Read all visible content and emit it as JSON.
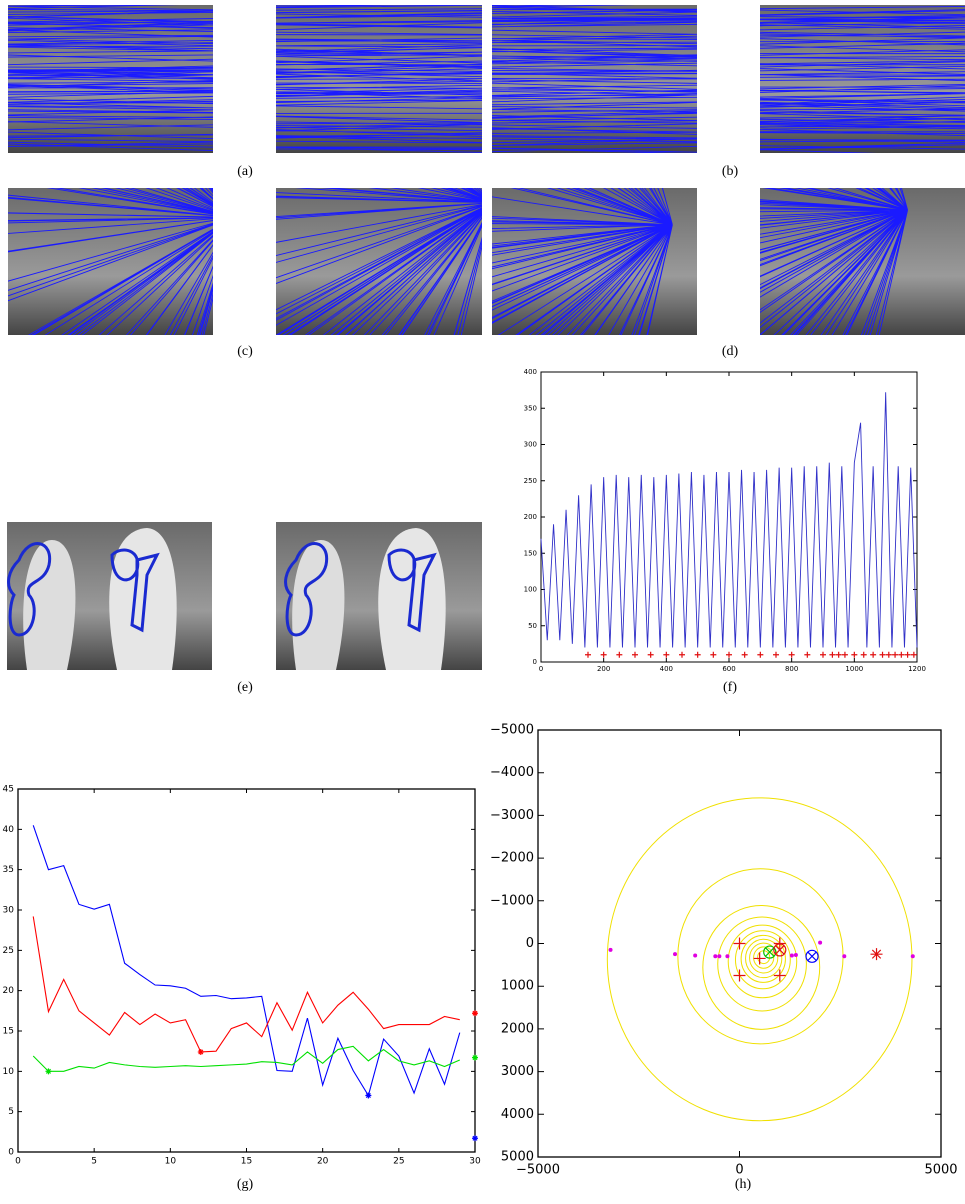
{
  "figure": {
    "labels": [
      "(a)",
      "(b)",
      "(c)",
      "(d)",
      "(e)",
      "(f)",
      "(g)",
      "(h)"
    ]
  },
  "chart_data": [
    {
      "type": "line",
      "x": [
        0,
        20,
        40,
        60,
        80,
        100,
        120,
        140,
        160,
        180,
        200,
        220,
        240,
        260,
        280,
        300,
        320,
        340,
        360,
        380,
        400,
        420,
        440,
        460,
        480,
        500,
        520,
        540,
        560,
        580,
        600,
        620,
        640,
        660,
        680,
        700,
        720,
        740,
        760,
        780,
        800,
        820,
        840,
        860,
        880,
        900,
        920,
        940,
        960,
        980,
        1000,
        1020,
        1040,
        1060,
        1080,
        1100,
        1120,
        1140,
        1160,
        1180,
        1200
      ],
      "xlim": [
        0,
        1200
      ],
      "ylim": [
        0,
        400
      ],
      "xticks": [
        0,
        200,
        400,
        600,
        800,
        1000,
        1200
      ],
      "yticks": [
        0,
        50,
        100,
        150,
        200,
        250,
        300,
        350,
        400
      ],
      "series": [
        {
          "color": "#3030c8",
          "values": [
            170,
            30,
            190,
            30,
            210,
            25,
            230,
            20,
            245,
            20,
            255,
            20,
            258,
            20,
            255,
            20,
            258,
            20,
            255,
            20,
            258,
            20,
            260,
            20,
            262,
            20,
            258,
            20,
            262,
            20,
            262,
            20,
            265,
            20,
            262,
            20,
            265,
            20,
            268,
            20,
            268,
            20,
            270,
            20,
            270,
            20,
            275,
            20,
            270,
            20,
            275,
            330,
            20,
            270,
            20,
            372,
            20,
            270,
            20,
            268,
            20
          ]
        },
        {
          "type": "scatter",
          "marker": "+",
          "color": "#e01010",
          "x": [
            150,
            200,
            250,
            300,
            350,
            400,
            450,
            500,
            550,
            600,
            650,
            700,
            750,
            800,
            850,
            900,
            930,
            950,
            970,
            1000,
            1030,
            1060,
            1090,
            1110,
            1130,
            1150,
            1170,
            1190
          ],
          "values": [
            10,
            10,
            10,
            10,
            10,
            10,
            10,
            10,
            10,
            10,
            10,
            10,
            10,
            10,
            10,
            10,
            10,
            10,
            10,
            10,
            10,
            10,
            10,
            10,
            10,
            10,
            10,
            10
          ]
        }
      ]
    },
    {
      "type": "line",
      "x": [
        1,
        2,
        3,
        4,
        5,
        6,
        7,
        8,
        9,
        10,
        11,
        12,
        13,
        14,
        15,
        16,
        17,
        18,
        19,
        20,
        21,
        22,
        23,
        24,
        25,
        26,
        27,
        28,
        29
      ],
      "xlim": [
        0,
        30
      ],
      "ylim": [
        0,
        45
      ],
      "xticks": [
        0,
        5,
        10,
        15,
        20,
        25,
        30
      ],
      "yticks": [
        0,
        5,
        10,
        15,
        20,
        25,
        30,
        35,
        40,
        45
      ],
      "series": [
        {
          "color": "#0000ff",
          "values": [
            40.5,
            35,
            35.5,
            30.7,
            30.1,
            30.7,
            23.4,
            22,
            20.7,
            20.6,
            20.3,
            19.3,
            19.4,
            19,
            19.1,
            19.3,
            10.1,
            10,
            16.6,
            8.3,
            14.1,
            10.1,
            7,
            14,
            11.9,
            7.3,
            12.8,
            8.4,
            14.8
          ],
          "marker": "*",
          "marker_x": [
            23,
            30
          ],
          "marker_values": [
            7,
            1.7
          ]
        },
        {
          "color": "#ff0000",
          "values": [
            29.2,
            17.4,
            21.4,
            17.5,
            16,
            14.5,
            17.3,
            15.8,
            17.1,
            16,
            16.4,
            12.4,
            12.5,
            15.3,
            16,
            14.3,
            18.5,
            15.1,
            19.8,
            16,
            18.2,
            19.8,
            17.7,
            15.3,
            15.8,
            15.8,
            15.8,
            16.8,
            16.4
          ],
          "marker": "*",
          "marker_x": [
            12,
            30
          ],
          "marker_values": [
            12.4,
            17.2
          ]
        },
        {
          "color": "#00e000",
          "values": [
            11.9,
            10,
            10,
            10.6,
            10.4,
            11.1,
            10.8,
            10.6,
            10.5,
            10.6,
            10.7,
            10.6,
            10.7,
            10.8,
            10.9,
            11.2,
            11.1,
            10.8,
            12.4,
            11,
            12.7,
            13.1,
            11.3,
            12.7,
            11.3,
            10.8,
            11.3,
            10.6,
            11.4
          ],
          "marker": "*",
          "marker_x": [
            2,
            30
          ],
          "marker_values": [
            10,
            11.7
          ]
        }
      ]
    },
    {
      "type": "contour",
      "xlim": [
        -5000,
        5000
      ],
      "ylim": [
        -5000,
        5000
      ],
      "y_reversed": true,
      "xticks": [
        {
          "value": -5000,
          "label": "−5000"
        },
        0,
        5000
      ],
      "yticks": [
        {
          "value": -5000,
          "label": "−5000"
        },
        {
          "value": -4000,
          "label": "−4000"
        },
        {
          "value": -3000,
          "label": "−3000"
        },
        {
          "value": -2000,
          "label": "−2000"
        },
        {
          "value": -1000,
          "label": "−1000"
        },
        0,
        1000,
        2000,
        3000,
        4000,
        5000
      ],
      "contour_color": "#f0e000",
      "contours": [
        {
          "cx": 600,
          "cy": 320,
          "r": 150
        },
        {
          "cx": 600,
          "cy": 330,
          "r": 250
        },
        {
          "cx": 600,
          "cy": 340,
          "r": 350
        },
        {
          "cx": 600,
          "cy": 350,
          "r": 450
        },
        {
          "cx": 590,
          "cy": 360,
          "r": 550
        },
        {
          "cx": 580,
          "cy": 380,
          "r": 680
        },
        {
          "cx": 570,
          "cy": 420,
          "r": 850
        },
        {
          "cx": 560,
          "cy": 480,
          "r": 1100
        },
        {
          "cx": 540,
          "cy": 560,
          "r": 1450
        },
        {
          "cx": 520,
          "cy": 300,
          "r": 2050
        },
        {
          "cx": 500,
          "cy": 370,
          "r": 3780
        }
      ],
      "series": [
        {
          "marker": "+",
          "color": "#e01010",
          "x": [
            0,
            1000,
            0,
            1000,
            500
          ],
          "values": [
            0,
            0,
            750,
            750,
            350
          ]
        },
        {
          "marker": "*",
          "color": "#e01010",
          "x": [
            3400
          ],
          "values": [
            250
          ]
        },
        {
          "marker": "otimes",
          "color": "#0000ff",
          "x": [
            1800
          ],
          "values": [
            300
          ]
        },
        {
          "marker": "otimes",
          "color": "#00c000",
          "x": [
            750
          ],
          "values": [
            200
          ]
        },
        {
          "marker": "otimes",
          "color": "#e01010",
          "x": [
            1000
          ],
          "values": [
            150
          ]
        },
        {
          "marker": "dot",
          "color": "#e000e0",
          "x": [
            -3200,
            -1600,
            -1100,
            -600,
            -500,
            -300,
            1300,
            1400,
            2000,
            2600,
            4300
          ],
          "values": [
            150,
            250,
            280,
            300,
            300,
            300,
            280,
            270,
            -20,
            300,
            300
          ]
        }
      ]
    }
  ]
}
